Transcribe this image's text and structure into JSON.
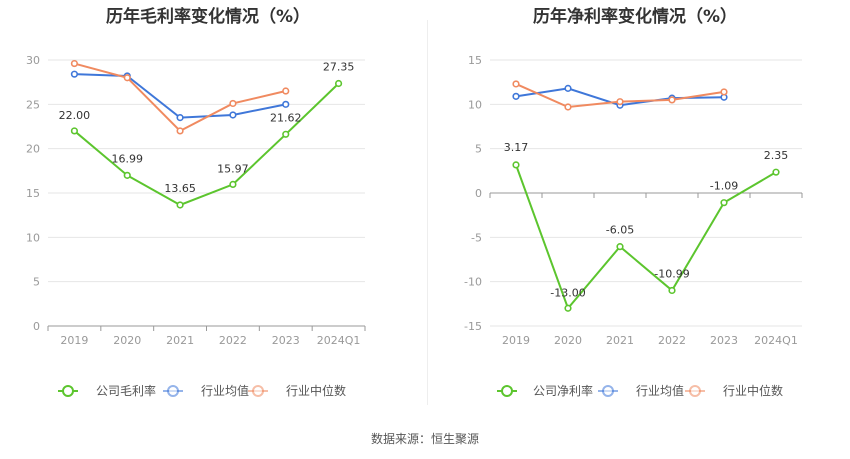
{
  "source": "数据来源：恒生聚源",
  "chart_data": [
    {
      "type": "line",
      "title": "历年毛利率变化情况（%）",
      "categories": [
        "2019",
        "2020",
        "2021",
        "2022",
        "2023",
        "2024Q1"
      ],
      "ylim": [
        0,
        30
      ],
      "yticks": [
        0,
        5,
        10,
        15,
        20,
        25,
        30
      ],
      "grid": true,
      "legend_position": "bottom",
      "series": [
        {
          "name": "公司毛利率",
          "color": "#5cc52e",
          "values": [
            22.0,
            16.99,
            13.65,
            15.97,
            21.62,
            27.35
          ],
          "labels": [
            "22.00",
            "16.99",
            "13.65",
            "15.97",
            "21.62",
            "27.35"
          ]
        },
        {
          "name": "行业均值",
          "color": "#3f77d9",
          "values": [
            28.4,
            28.2,
            23.5,
            23.8,
            25.0,
            null
          ]
        },
        {
          "name": "行业中位数",
          "color": "#f08a60",
          "values": [
            29.6,
            28.0,
            22.0,
            25.1,
            26.5,
            null
          ]
        }
      ]
    },
    {
      "type": "line",
      "title": "历年净利率变化情况（%）",
      "categories": [
        "2019",
        "2020",
        "2021",
        "2022",
        "2023",
        "2024Q1"
      ],
      "ylim": [
        -15,
        15
      ],
      "yticks": [
        -15,
        -10,
        -5,
        0,
        5,
        10,
        15
      ],
      "grid": true,
      "legend_position": "bottom",
      "series": [
        {
          "name": "公司净利率",
          "color": "#5cc52e",
          "values": [
            3.17,
            -13.0,
            -6.05,
            -10.99,
            -1.09,
            2.35
          ],
          "labels": [
            "3.17",
            "-13.00",
            "-6.05",
            "-10.99",
            "-1.09",
            "2.35"
          ]
        },
        {
          "name": "行业均值",
          "color": "#3f77d9",
          "values": [
            10.9,
            11.8,
            9.9,
            10.7,
            10.8,
            null
          ]
        },
        {
          "name": "行业中位数",
          "color": "#f08a60",
          "values": [
            12.3,
            9.7,
            10.3,
            10.5,
            11.4,
            null
          ]
        }
      ]
    }
  ]
}
